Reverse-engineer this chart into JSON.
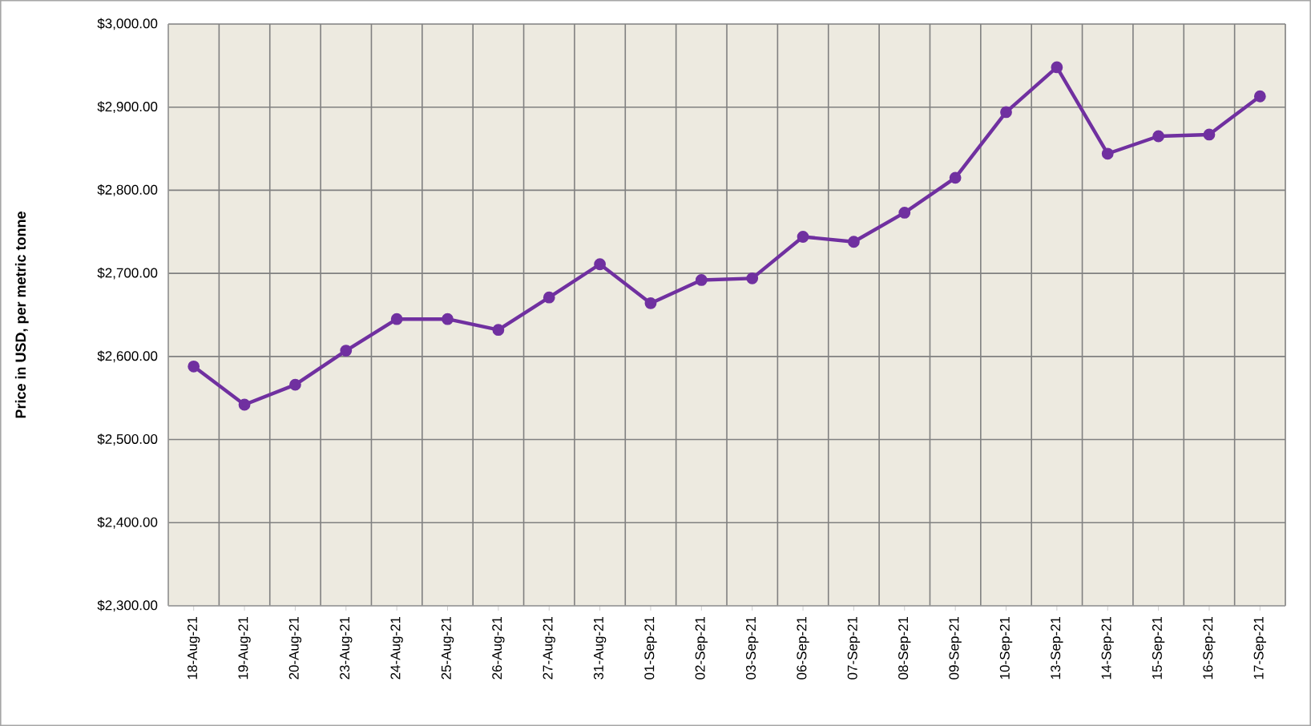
{
  "chart_data": {
    "type": "line",
    "ylabel": "Price in USD, per metric tonne",
    "categories": [
      "18-Aug-21",
      "19-Aug-21",
      "20-Aug-21",
      "23-Aug-21",
      "24-Aug-21",
      "25-Aug-21",
      "26-Aug-21",
      "27-Aug-21",
      "31-Aug-21",
      "01-Sep-21",
      "02-Sep-21",
      "03-Sep-21",
      "06-Sep-21",
      "07-Sep-21",
      "08-Sep-21",
      "09-Sep-21",
      "10-Sep-21",
      "13-Sep-21",
      "14-Sep-21",
      "15-Sep-21",
      "16-Sep-21",
      "17-Sep-21"
    ],
    "series": [
      {
        "color": "#7030a0",
        "values": [
          2588,
          2542,
          2566,
          2607,
          2645,
          2645,
          2632,
          2671,
          2711,
          2664,
          2692,
          2694,
          2744,
          2738,
          2773,
          2815,
          2894,
          2948,
          2844,
          2865,
          2867,
          2913
        ]
      }
    ],
    "ylim": [
      2300,
      3000
    ],
    "yticks": [
      {
        "value": 2300,
        "label": "$2,300.00"
      },
      {
        "value": 2400,
        "label": "$2,400.00"
      },
      {
        "value": 2500,
        "label": "$2,500.00"
      },
      {
        "value": 2600,
        "label": "$2,600.00"
      },
      {
        "value": 2700,
        "label": "$2,700.00"
      },
      {
        "value": 2800,
        "label": "$2,800.00"
      },
      {
        "value": 2900,
        "label": "$2,900.00"
      },
      {
        "value": 3000,
        "label": "$3,000.00"
      }
    ],
    "grid": true,
    "marker": "circle",
    "line_style": "solid"
  }
}
